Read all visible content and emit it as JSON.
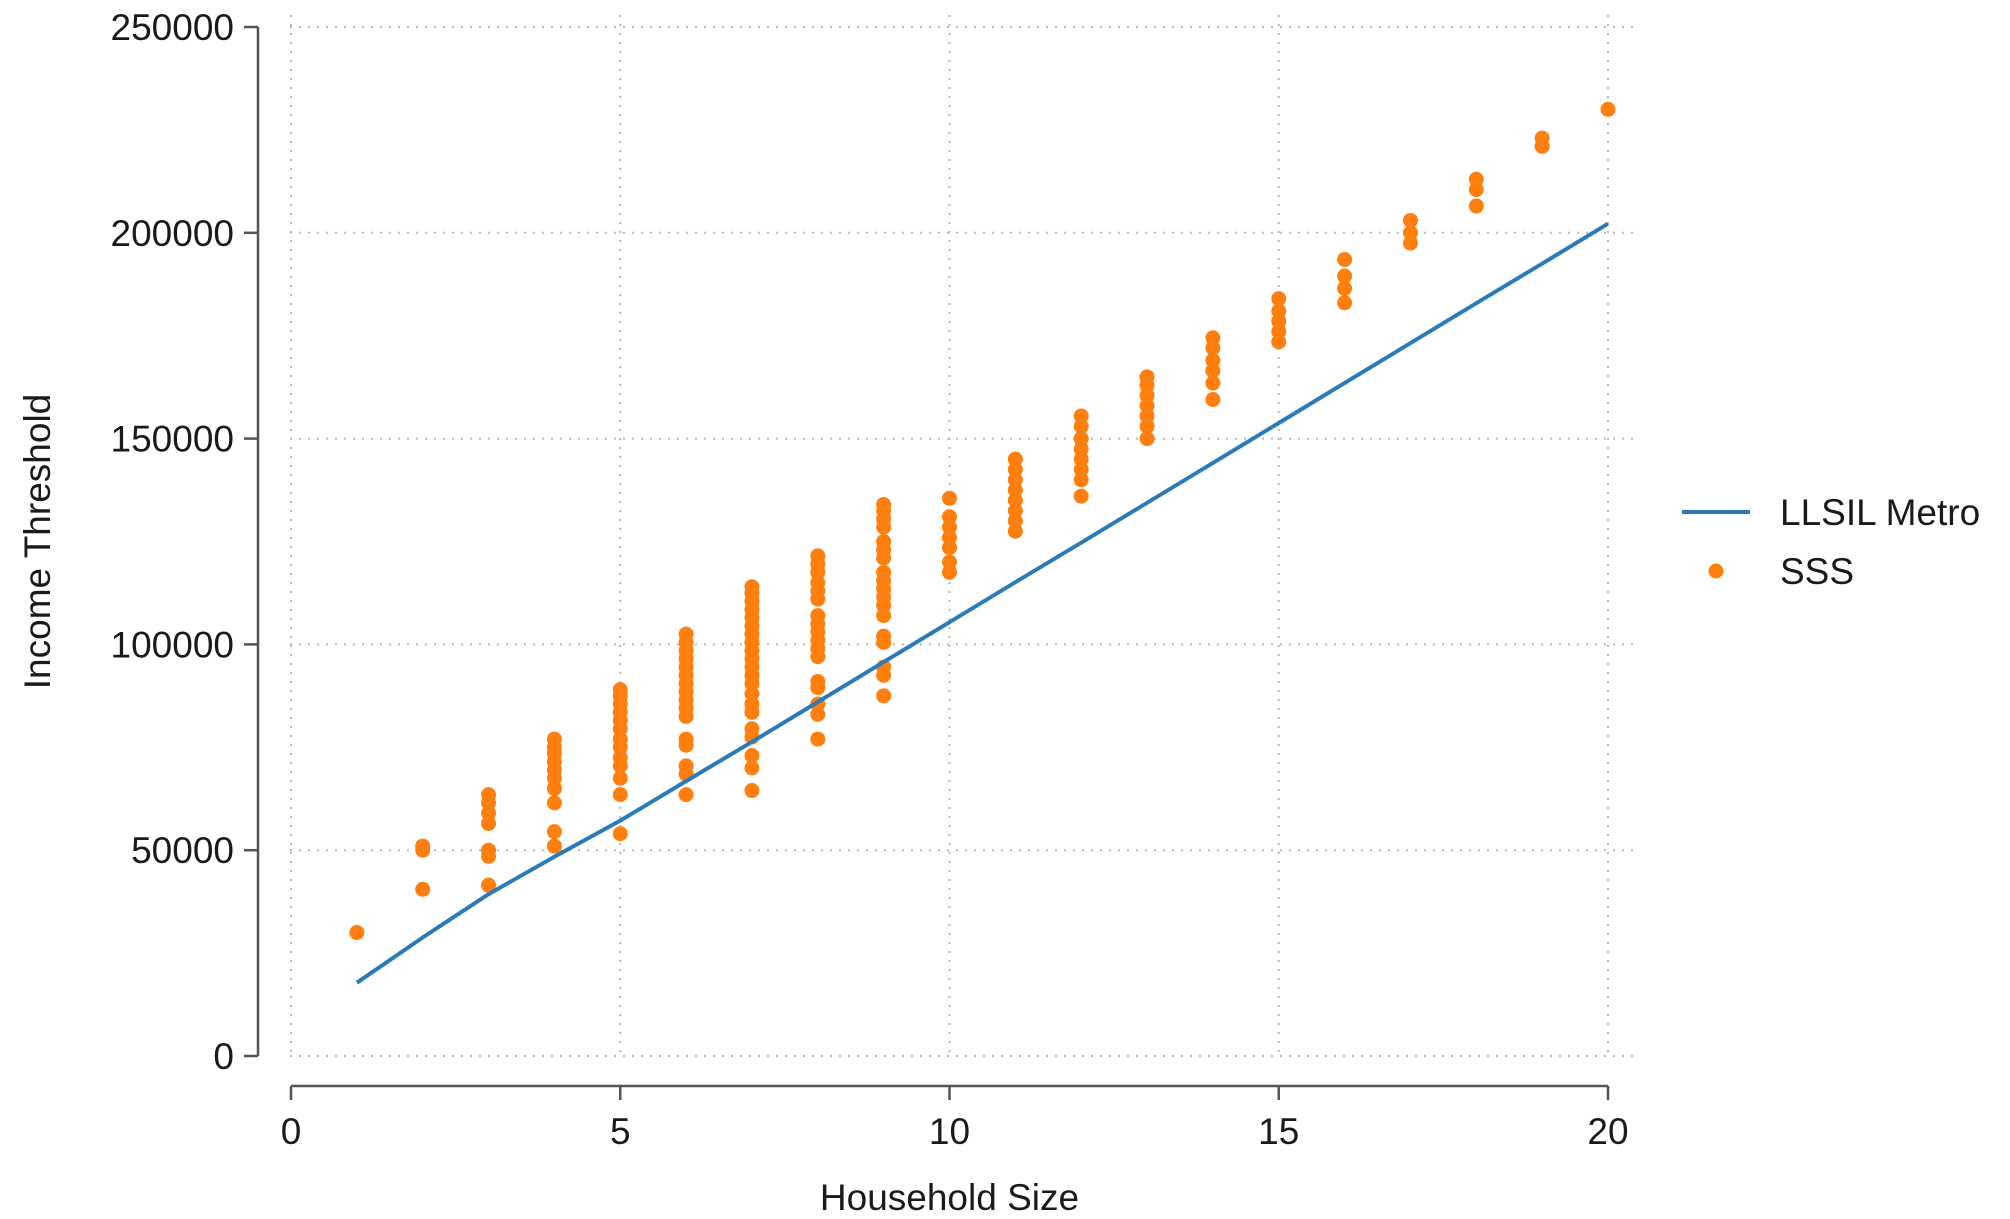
{
  "chart_data": {
    "type": "scatter",
    "xlabel": "Household Size",
    "ylabel": "Income Threshold",
    "xlim": [
      0,
      20
    ],
    "ylim": [
      0,
      250000
    ],
    "x_ticks": [
      0,
      5,
      10,
      15,
      20
    ],
    "y_ticks": [
      0,
      50000,
      100000,
      150000,
      200000,
      250000
    ],
    "x_tick_labels": [
      "0",
      "5",
      "10",
      "15",
      "20"
    ],
    "y_tick_labels": [
      "0",
      "50000",
      "100000",
      "150000",
      "200000",
      "250000"
    ],
    "grid": true,
    "legend_position": "right",
    "series": [
      {
        "name": "LLSIL Metro",
        "kind": "line",
        "color": "#2b7bb9",
        "x": [
          1,
          2,
          3,
          4,
          5,
          6,
          7,
          8,
          9,
          10,
          11,
          12,
          13,
          14,
          15,
          16,
          17,
          18,
          19,
          20
        ],
        "y": [
          17800,
          28800,
          39300,
          48400,
          57200,
          66800,
          76300,
          86000,
          95700,
          105400,
          115100,
          124700,
          134400,
          144100,
          153800,
          163500,
          173200,
          182900,
          192500,
          202200
        ]
      },
      {
        "name": "SSS",
        "kind": "scatter",
        "color": "#ff7f0e",
        "points": [
          [
            1,
            30000
          ],
          [
            2,
            40500
          ],
          [
            2,
            50000
          ],
          [
            2,
            51000
          ],
          [
            3,
            41500
          ],
          [
            3,
            48500
          ],
          [
            3,
            50000
          ],
          [
            3,
            56500
          ],
          [
            3,
            59000
          ],
          [
            3,
            61500
          ],
          [
            3,
            63500
          ],
          [
            4,
            51000
          ],
          [
            4,
            54500
          ],
          [
            4,
            61500
          ],
          [
            4,
            65000
          ],
          [
            4,
            67500
          ],
          [
            4,
            69500
          ],
          [
            4,
            71500
          ],
          [
            4,
            73500
          ],
          [
            4,
            75000
          ],
          [
            4,
            77000
          ],
          [
            5,
            54000
          ],
          [
            5,
            63500
          ],
          [
            5,
            67500
          ],
          [
            5,
            70500
          ],
          [
            5,
            72500
          ],
          [
            5,
            75000
          ],
          [
            5,
            77000
          ],
          [
            5,
            79500
          ],
          [
            5,
            81500
          ],
          [
            5,
            83500
          ],
          [
            5,
            85500
          ],
          [
            5,
            87500
          ],
          [
            5,
            89000
          ],
          [
            6,
            63500
          ],
          [
            6,
            68500
          ],
          [
            6,
            70500
          ],
          [
            6,
            75500
          ],
          [
            6,
            77000
          ],
          [
            6,
            82500
          ],
          [
            6,
            84500
          ],
          [
            6,
            86500
          ],
          [
            6,
            88500
          ],
          [
            6,
            90500
          ],
          [
            6,
            92500
          ],
          [
            6,
            94500
          ],
          [
            6,
            96500
          ],
          [
            6,
            98500
          ],
          [
            6,
            100500
          ],
          [
            6,
            102500
          ],
          [
            7,
            64500
          ],
          [
            7,
            70000
          ],
          [
            7,
            73000
          ],
          [
            7,
            77500
          ],
          [
            7,
            79500
          ],
          [
            7,
            83500
          ],
          [
            7,
            85500
          ],
          [
            7,
            88000
          ],
          [
            7,
            90500
          ],
          [
            7,
            92500
          ],
          [
            7,
            94500
          ],
          [
            7,
            96500
          ],
          [
            7,
            98500
          ],
          [
            7,
            100500
          ],
          [
            7,
            102500
          ],
          [
            7,
            104500
          ],
          [
            7,
            106500
          ],
          [
            7,
            108500
          ],
          [
            7,
            110500
          ],
          [
            7,
            112500
          ],
          [
            7,
            114000
          ],
          [
            8,
            77000
          ],
          [
            8,
            83000
          ],
          [
            8,
            85500
          ],
          [
            8,
            89500
          ],
          [
            8,
            91000
          ],
          [
            8,
            97000
          ],
          [
            8,
            99000
          ],
          [
            8,
            101000
          ],
          [
            8,
            103000
          ],
          [
            8,
            105000
          ],
          [
            8,
            107000
          ],
          [
            8,
            111000
          ],
          [
            8,
            113000
          ],
          [
            8,
            115000
          ],
          [
            8,
            117500
          ],
          [
            8,
            119500
          ],
          [
            8,
            121500
          ],
          [
            9,
            87500
          ],
          [
            9,
            92500
          ],
          [
            9,
            94500
          ],
          [
            9,
            100500
          ],
          [
            9,
            102000
          ],
          [
            9,
            107000
          ],
          [
            9,
            109500
          ],
          [
            9,
            111500
          ],
          [
            9,
            113500
          ],
          [
            9,
            115500
          ],
          [
            9,
            117500
          ],
          [
            9,
            121000
          ],
          [
            9,
            123000
          ],
          [
            9,
            125000
          ],
          [
            9,
            128500
          ],
          [
            9,
            130500
          ],
          [
            9,
            132500
          ],
          [
            9,
            134000
          ],
          [
            10,
            117500
          ],
          [
            10,
            120000
          ],
          [
            10,
            123500
          ],
          [
            10,
            126000
          ],
          [
            10,
            128500
          ],
          [
            10,
            131000
          ],
          [
            10,
            135500
          ],
          [
            11,
            127500
          ],
          [
            11,
            130000
          ],
          [
            11,
            132500
          ],
          [
            11,
            135000
          ],
          [
            11,
            137500
          ],
          [
            11,
            140000
          ],
          [
            11,
            142500
          ],
          [
            11,
            145000
          ],
          [
            12,
            136000
          ],
          [
            12,
            140000
          ],
          [
            12,
            142500
          ],
          [
            12,
            145000
          ],
          [
            12,
            147500
          ],
          [
            12,
            150000
          ],
          [
            12,
            153000
          ],
          [
            12,
            155500
          ],
          [
            13,
            150000
          ],
          [
            13,
            153000
          ],
          [
            13,
            155500
          ],
          [
            13,
            158000
          ],
          [
            13,
            160500
          ],
          [
            13,
            163000
          ],
          [
            13,
            165000
          ],
          [
            14,
            159500
          ],
          [
            14,
            163500
          ],
          [
            14,
            166500
          ],
          [
            14,
            169000
          ],
          [
            14,
            172000
          ],
          [
            14,
            174500
          ],
          [
            15,
            173500
          ],
          [
            15,
            176000
          ],
          [
            15,
            178500
          ],
          [
            15,
            181000
          ],
          [
            15,
            184000
          ],
          [
            16,
            183000
          ],
          [
            16,
            186500
          ],
          [
            16,
            189500
          ],
          [
            16,
            193500
          ],
          [
            17,
            197500
          ],
          [
            17,
            200000
          ],
          [
            17,
            203000
          ],
          [
            18,
            206500
          ],
          [
            18,
            210500
          ],
          [
            18,
            213000
          ],
          [
            19,
            221000
          ],
          [
            19,
            223000
          ],
          [
            20,
            230000
          ]
        ]
      }
    ]
  }
}
